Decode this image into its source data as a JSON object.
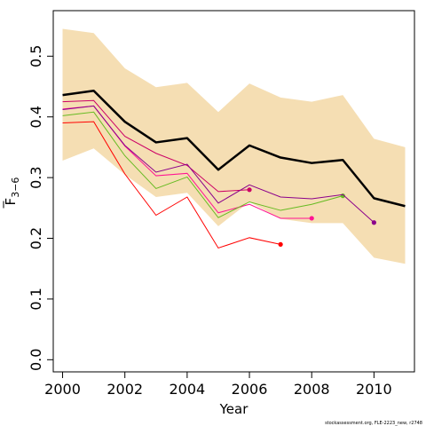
{
  "chart_data": {
    "type": "line",
    "xlabel": "Year",
    "ylabel": "F",
    "ylabel_subscript": "3−6",
    "credit": "stockassessment.org, FLE-2223_new, r2748",
    "xlim": [
      1999.7,
      2011.3
    ],
    "ylim": [
      -0.02,
      0.575
    ],
    "x_ticks": [
      2000,
      2002,
      2004,
      2006,
      2008,
      2010
    ],
    "x_tick_labels": [
      "2000",
      "2002",
      "2004",
      "2006",
      "2008",
      "2010"
    ],
    "y_ticks": [
      0.0,
      0.1,
      0.2,
      0.3,
      0.4,
      0.5
    ],
    "y_tick_labels": [
      "0.0",
      "0.1",
      "0.2",
      "0.3",
      "0.4",
      "0.5"
    ],
    "band": {
      "color": "#f5deb3",
      "x": [
        2000,
        2001,
        2002,
        2003,
        2004,
        2005,
        2006,
        2007,
        2008,
        2009,
        2010,
        2011
      ],
      "upper": [
        0.545,
        0.538,
        0.48,
        0.449,
        0.456,
        0.408,
        0.455,
        0.432,
        0.425,
        0.436,
        0.364,
        0.35
      ],
      "lower": [
        0.328,
        0.348,
        0.305,
        0.268,
        0.275,
        0.22,
        0.26,
        0.232,
        0.225,
        0.225,
        0.168,
        0.158
      ]
    },
    "main_series": {
      "color": "#000000",
      "x": [
        2000,
        2001,
        2002,
        2003,
        2004,
        2005,
        2006,
        2007,
        2008,
        2009,
        2010,
        2011
      ],
      "values": [
        0.436,
        0.443,
        0.392,
        0.358,
        0.365,
        0.313,
        0.353,
        0.333,
        0.324,
        0.329,
        0.266,
        0.253
      ]
    },
    "retro_series": [
      {
        "color": "#ff0000",
        "x": [
          2000,
          2001,
          2002,
          2003,
          2004,
          2005,
          2006,
          2007
        ],
        "values": [
          0.39,
          0.392,
          0.306,
          0.238,
          0.268,
          0.184,
          0.201,
          0.19
        ]
      },
      {
        "color": "#cc0066",
        "x": [
          2000,
          2001,
          2002,
          2003,
          2004,
          2005,
          2006
        ],
        "values": [
          0.425,
          0.427,
          0.368,
          0.34,
          0.32,
          0.277,
          0.28
        ]
      },
      {
        "color": "#ff1493",
        "x": [
          2000,
          2001,
          2002,
          2003,
          2004,
          2005,
          2006,
          2007,
          2008
        ],
        "values": [
          0.413,
          0.418,
          0.352,
          0.303,
          0.307,
          0.242,
          0.256,
          0.233,
          0.233
        ]
      },
      {
        "color": "#66bb22",
        "x": [
          2000,
          2001,
          2002,
          2003,
          2004,
          2005,
          2006,
          2007,
          2008,
          2009
        ],
        "values": [
          0.402,
          0.408,
          0.336,
          0.282,
          0.301,
          0.234,
          0.26,
          0.246,
          0.256,
          0.27
        ]
      },
      {
        "color": "#8b008b",
        "x": [
          2000,
          2001,
          2002,
          2003,
          2004,
          2005,
          2006,
          2007,
          2008,
          2009,
          2010
        ],
        "values": [
          0.412,
          0.418,
          0.353,
          0.309,
          0.322,
          0.258,
          0.288,
          0.268,
          0.265,
          0.272,
          0.226
        ]
      }
    ]
  }
}
